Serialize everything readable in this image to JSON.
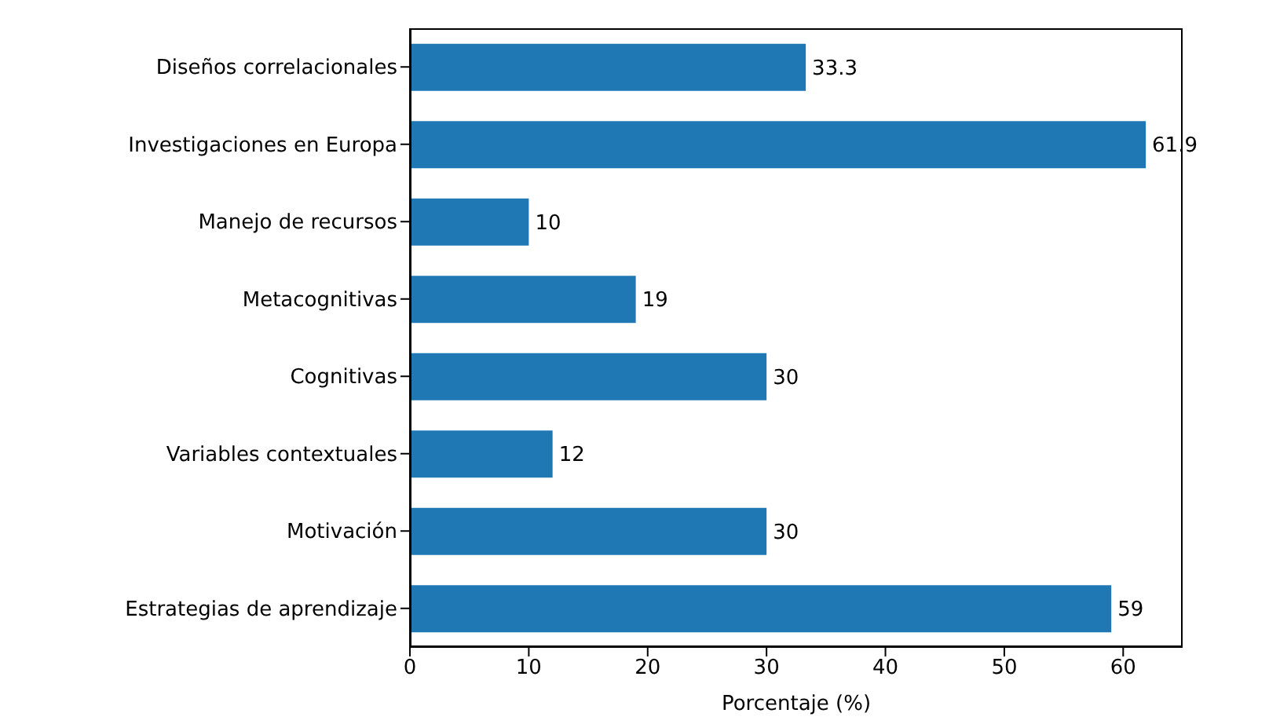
{
  "chart_data": {
    "type": "bar",
    "orientation": "horizontal",
    "xlabel": "Porcentaje (%)",
    "categories": [
      "Diseños correlacionales",
      "Investigaciones en Europa",
      "Manejo de recursos",
      "Metacognitivas",
      "Cognitivas",
      "Variables contextuales",
      "Motivación",
      "Estrategias de aprendizaje"
    ],
    "values": [
      33.3,
      61.9,
      10,
      19,
      30,
      12,
      30,
      59
    ],
    "color": "#1f77b4",
    "xlim": [
      0,
      65
    ],
    "xticks": [
      0,
      10,
      20,
      30,
      40,
      50,
      60
    ],
    "data_labels": true,
    "grid": false
  }
}
